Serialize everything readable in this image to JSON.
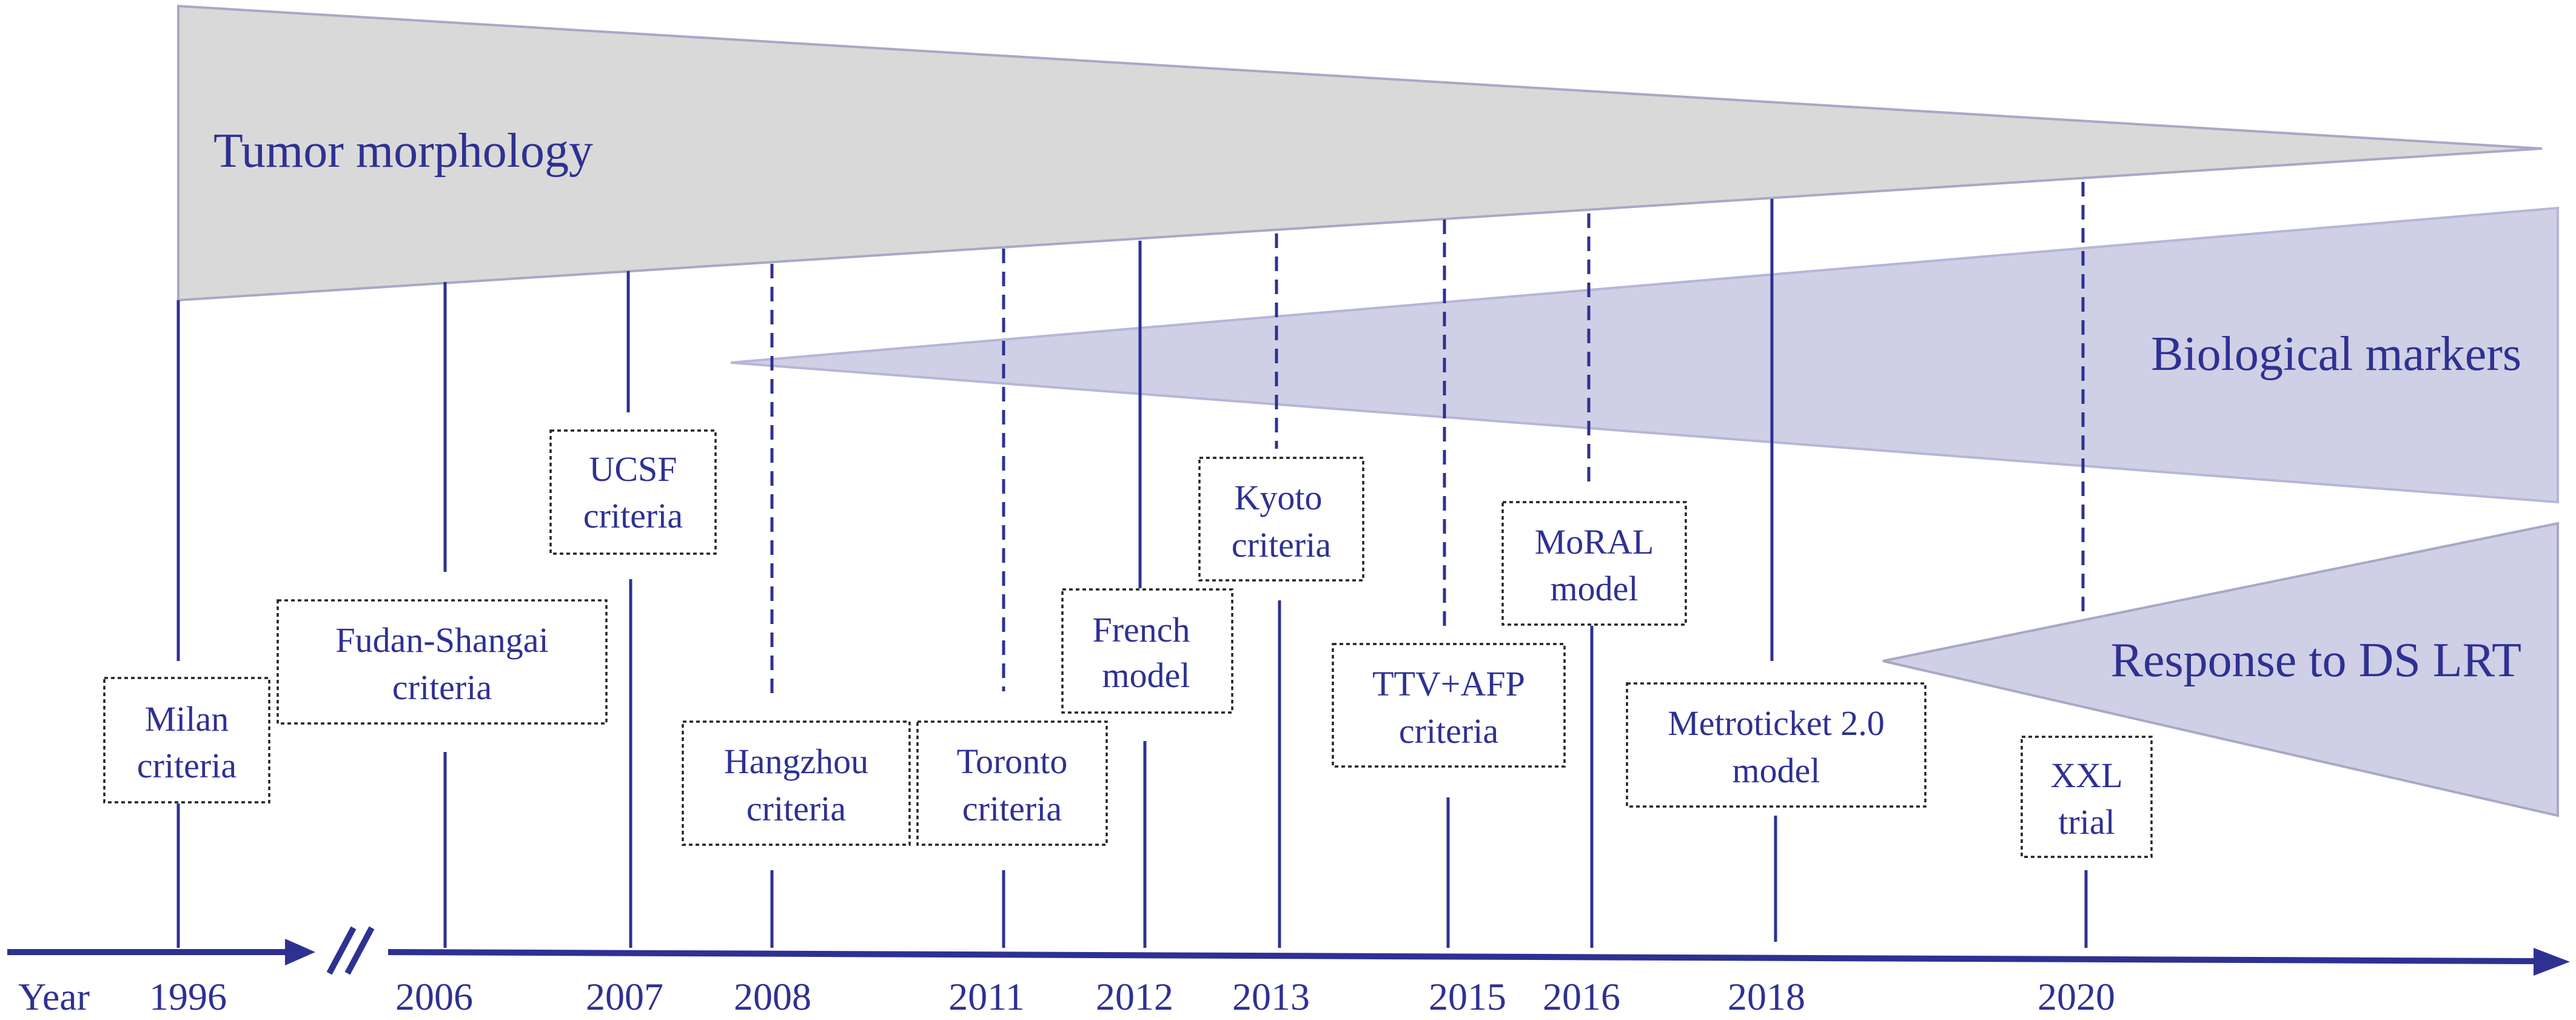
{
  "bands": {
    "morphology": {
      "label": "Tumor morphology",
      "fill": "#d9d9d9",
      "stroke": "#a8a8c8"
    },
    "biological": {
      "label": "Biological markers",
      "fill": "#cfcfe6",
      "stroke": "#b6b6d8"
    },
    "response": {
      "label": "Response to DS LRT",
      "fill": "#cfcfe6",
      "stroke": "#a8a8c8"
    }
  },
  "timeline": {
    "axis_label": "Year",
    "color": "#2e3192",
    "years": [
      "1996",
      "2006",
      "2007",
      "2008",
      "2011",
      "2012",
      "2013",
      "2015",
      "2016",
      "2018",
      "2020"
    ]
  },
  "criteria": [
    {
      "lines": [
        "Milan",
        "criteria"
      ],
      "year": "1996"
    },
    {
      "lines": [
        "Fudan-Shangai",
        "criteria"
      ],
      "year": "2006"
    },
    {
      "lines": [
        "UCSF",
        "criteria"
      ],
      "year": "2007"
    },
    {
      "lines": [
        "Hangzhou",
        "criteria"
      ],
      "year": "2008"
    },
    {
      "lines": [
        "Toronto",
        "criteria"
      ],
      "year": "2011"
    },
    {
      "lines": [
        "French",
        "model"
      ],
      "year": "2012"
    },
    {
      "lines": [
        "Kyoto",
        "criteria"
      ],
      "year": "2013"
    },
    {
      "lines": [
        "TTV+AFP",
        "criteria"
      ],
      "year": "2015"
    },
    {
      "lines": [
        "MoRAL",
        "model"
      ],
      "year": "2016"
    },
    {
      "lines": [
        "Metroticket 2.0",
        "model"
      ],
      "year": "2018"
    },
    {
      "lines": [
        "XXL",
        "trial"
      ],
      "year": "2020"
    }
  ]
}
